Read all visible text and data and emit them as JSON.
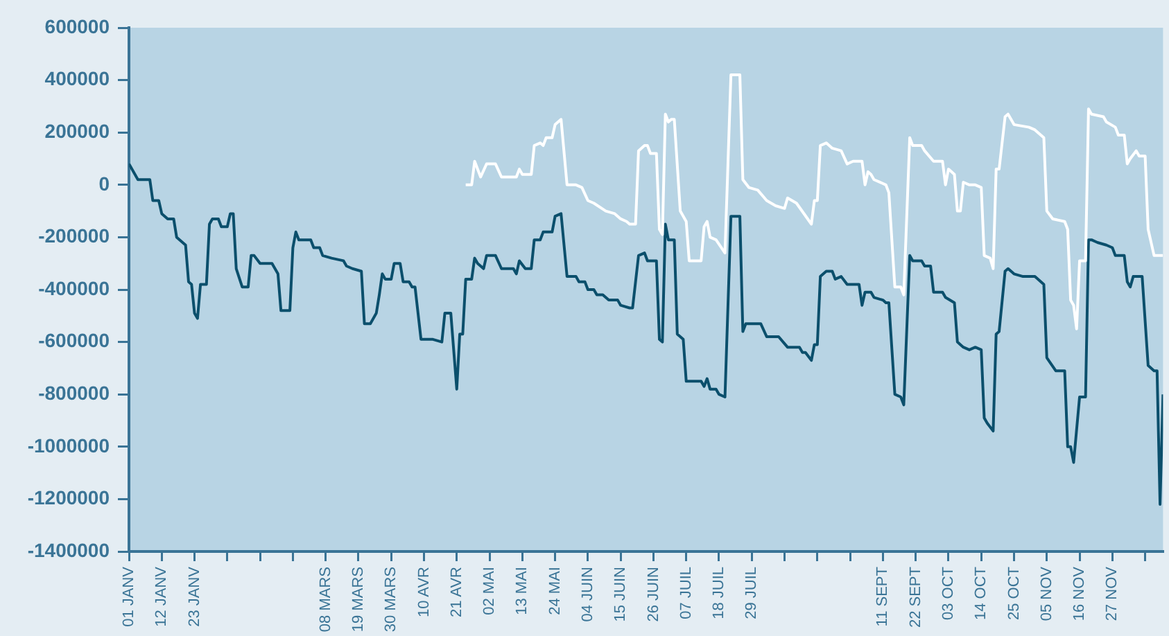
{
  "chart_data": {
    "type": "line",
    "xlim": [
      "--01-01",
      "--12-14"
    ],
    "xticks": [
      {
        "value": "--01-01",
        "label": "01 JANV"
      },
      {
        "value": "--01-12",
        "label": "12 JANV"
      },
      {
        "value": "--01-23",
        "label": "23 JANV"
      },
      {
        "value": "--02-03",
        "label": null
      },
      {
        "value": "--02-14",
        "label": null
      },
      {
        "value": "--02-25",
        "label": null
      },
      {
        "value": "--03-08",
        "label": "08 MARS"
      },
      {
        "value": "--03-19",
        "label": "19 MARS"
      },
      {
        "value": "--03-30",
        "label": "30 MARS"
      },
      {
        "value": "--04-10",
        "label": "10 AVR"
      },
      {
        "value": "--04-21",
        "label": "21 AVR"
      },
      {
        "value": "--05-02",
        "label": "02 MAI"
      },
      {
        "value": "--05-13",
        "label": "13 MAI"
      },
      {
        "value": "--05-24",
        "label": "24 MAI"
      },
      {
        "value": "--06-04",
        "label": "04 JUIN"
      },
      {
        "value": "--06-15",
        "label": "15 JUIN"
      },
      {
        "value": "--06-26",
        "label": "26 JUIN"
      },
      {
        "value": "--07-07",
        "label": "07 JUIL"
      },
      {
        "value": "--07-18",
        "label": "18 JUIL"
      },
      {
        "value": "--07-29",
        "label": "29 JUIL"
      },
      {
        "value": "--08-09",
        "label": null
      },
      {
        "value": "--08-20",
        "label": null
      },
      {
        "value": "--08-31",
        "label": null
      },
      {
        "value": "--09-11",
        "label": "11 SEPT"
      },
      {
        "value": "--09-22",
        "label": "22 SEPT"
      },
      {
        "value": "--10-03",
        "label": "03 OCT"
      },
      {
        "value": "--10-14",
        "label": "14 OCT"
      },
      {
        "value": "--10-25",
        "label": "25 OCT"
      },
      {
        "value": "--11-05",
        "label": "05 NOV"
      },
      {
        "value": "--11-16",
        "label": "16 NOV"
      },
      {
        "value": "--11-27",
        "label": "27 NOV"
      },
      {
        "value": "--12-08",
        "label": null
      }
    ],
    "ylim": [
      -1400000,
      600000
    ],
    "yticks": [
      -1400000,
      -1200000,
      -1000000,
      -800000,
      -600000,
      -400000,
      -200000,
      0,
      200000,
      400000,
      600000
    ],
    "grid": false,
    "series": [
      {
        "color": "#0b4f6c",
        "x": [
          "--01-01",
          "--01-04",
          "--01-08",
          "--01-09",
          "--01-11",
          "--01-12",
          "--01-14",
          "--01-16",
          "--01-17",
          "--01-19",
          "--01-20",
          "--01-21",
          "--01-22",
          "--01-23",
          "--01-24",
          "--01-25",
          "--01-27",
          "--01-28",
          "--01-29",
          "--01-31",
          "--02-01",
          "--02-03",
          "--02-04",
          "--02-05",
          "--02-06",
          "--02-08",
          "--02-10",
          "--02-11",
          "--02-12",
          "--02-14",
          "--02-18",
          "--02-20",
          "--02-21",
          "--02-24",
          "--02-25",
          "--02-26",
          "--02-27",
          "--03-03",
          "--03-04",
          "--03-06",
          "--03-07",
          "--03-10",
          "--03-14",
          "--03-15",
          "--03-17",
          "--03-20",
          "--03-21",
          "--03-23",
          "--03-25",
          "--03-26",
          "--03-27",
          "--03-28",
          "--03-30",
          "--03-31",
          "--04-02",
          "--04-03",
          "--04-05",
          "--04-06",
          "--04-07",
          "--04-09",
          "--04-13",
          "--04-16",
          "--04-17",
          "--04-19",
          "--04-21",
          "--04-22",
          "--04-23",
          "--04-24",
          "--04-26",
          "--04-27",
          "--04-28",
          "--04-30",
          "--05-01",
          "--05-04",
          "--05-06",
          "--05-10",
          "--05-11",
          "--05-12",
          "--05-14",
          "--05-16",
          "--05-17",
          "--05-19",
          "--05-20",
          "--05-23",
          "--05-24",
          "--05-26",
          "--05-28",
          "--05-31",
          "--06-01",
          "--06-03",
          "--06-04",
          "--06-06",
          "--06-07",
          "--06-09",
          "--06-11",
          "--06-14",
          "--06-15",
          "--06-18",
          "--06-19",
          "--06-21",
          "--06-23",
          "--06-24",
          "--06-27",
          "--06-28",
          "--06-29",
          "--06-30",
          "--07-01",
          "--07-03",
          "--07-04",
          "--07-06",
          "--07-07",
          "--07-12",
          "--07-13",
          "--07-14",
          "--07-15",
          "--07-17",
          "--07-18",
          "--07-20",
          "--07-22",
          "--07-25",
          "--07-26",
          "--07-27",
          "--08-01",
          "--08-03",
          "--08-07",
          "--08-10",
          "--08-14",
          "--08-15",
          "--08-16",
          "--08-18",
          "--08-19",
          "--08-20",
          "--08-21",
          "--08-23",
          "--08-25",
          "--08-26",
          "--08-28",
          "--08-30",
          "--09-03",
          "--09-04",
          "--09-05",
          "--09-07",
          "--09-08",
          "--09-11",
          "--09-12",
          "--09-13",
          "--09-15",
          "--09-17",
          "--09-18",
          "--09-20",
          "--09-21",
          "--09-24",
          "--09-25",
          "--09-27",
          "--09-28",
          "--10-01",
          "--10-02",
          "--10-05",
          "--10-06",
          "--10-07",
          "--10-08",
          "--10-10",
          "--10-12",
          "--10-14",
          "--10-15",
          "--10-16",
          "--10-18",
          "--10-19",
          "--10-20",
          "--10-22",
          "--10-23",
          "--10-25",
          "--10-28",
          "--11-01",
          "--11-04",
          "--11-05",
          "--11-08",
          "--11-11",
          "--11-12",
          "--11-13",
          "--11-14",
          "--11-16",
          "--11-18",
          "--11-19",
          "--11-20",
          "--11-22",
          "--11-25",
          "--11-27",
          "--11-28",
          "--12-01",
          "--12-02",
          "--12-03",
          "--12-04",
          "--12-05",
          "--12-07",
          "--12-09",
          "--12-11",
          "--12-12",
          "--12-13",
          "--12-14"
        ],
        "values": [
          80000,
          20000,
          20000,
          -60000,
          -60000,
          -110000,
          -130000,
          -130000,
          -200000,
          -220000,
          -230000,
          -370000,
          -380000,
          -490000,
          -510000,
          -380000,
          -380000,
          -150000,
          -130000,
          -130000,
          -160000,
          -160000,
          -110000,
          -110000,
          -320000,
          -390000,
          -390000,
          -270000,
          -270000,
          -300000,
          -300000,
          -340000,
          -480000,
          -480000,
          -240000,
          -180000,
          -210000,
          -210000,
          -240000,
          -240000,
          -270000,
          -280000,
          -290000,
          -310000,
          -320000,
          -330000,
          -530000,
          -530000,
          -490000,
          -420000,
          -340000,
          -360000,
          -360000,
          -300000,
          -300000,
          -370000,
          -370000,
          -390000,
          -390000,
          -590000,
          -590000,
          -600000,
          -490000,
          -490000,
          -780000,
          -570000,
          -570000,
          -360000,
          -360000,
          -280000,
          -300000,
          -320000,
          -270000,
          -270000,
          -320000,
          -320000,
          -340000,
          -290000,
          -320000,
          -320000,
          -210000,
          -210000,
          -180000,
          -180000,
          -120000,
          -110000,
          -350000,
          -350000,
          -370000,
          -370000,
          -400000,
          -400000,
          -420000,
          -420000,
          -440000,
          -440000,
          -460000,
          -470000,
          -470000,
          -270000,
          -260000,
          -290000,
          -290000,
          -590000,
          -600000,
          -150000,
          -210000,
          -210000,
          -570000,
          -590000,
          -750000,
          -750000,
          -770000,
          -740000,
          -780000,
          -780000,
          -800000,
          -810000,
          -120000,
          -120000,
          -560000,
          -530000,
          -530000,
          -580000,
          -580000,
          -620000,
          -620000,
          -640000,
          -640000,
          -670000,
          -610000,
          -610000,
          -350000,
          -330000,
          -330000,
          -360000,
          -350000,
          -380000,
          -380000,
          -460000,
          -410000,
          -410000,
          -430000,
          -440000,
          -450000,
          -450000,
          -800000,
          -810000,
          -840000,
          -270000,
          -290000,
          -290000,
          -310000,
          -310000,
          -410000,
          -410000,
          -430000,
          -450000,
          -600000,
          -610000,
          -620000,
          -630000,
          -620000,
          -630000,
          -890000,
          -910000,
          -940000,
          -570000,
          -560000,
          -330000,
          -320000,
          -340000,
          -350000,
          -350000,
          -380000,
          -660000,
          -710000,
          -710000,
          -1000000,
          -1000000,
          -1060000,
          -810000,
          -810000,
          -210000,
          -210000,
          -220000,
          -230000,
          -240000,
          -270000,
          -270000,
          -370000,
          -390000,
          -350000,
          -350000,
          -350000,
          -690000,
          -710000,
          -710000,
          -1220000,
          -800000
        ]
      },
      {
        "color": "#ffffff",
        "x": [
          "--04-24",
          "--04-26",
          "--04-27",
          "--04-29",
          "--05-01",
          "--05-04",
          "--05-06",
          "--05-11",
          "--05-12",
          "--05-13",
          "--05-16",
          "--05-17",
          "--05-19",
          "--05-20",
          "--05-21",
          "--05-23",
          "--05-24",
          "--05-26",
          "--05-28",
          "--05-31",
          "--06-02",
          "--06-04",
          "--06-06",
          "--06-10",
          "--06-13",
          "--06-15",
          "--06-17",
          "--06-18",
          "--06-20",
          "--06-21",
          "--06-23",
          "--06-24",
          "--06-25",
          "--06-27",
          "--06-28",
          "--06-29",
          "--06-30",
          "--07-01",
          "--07-02",
          "--07-03",
          "--07-05",
          "--07-07",
          "--07-08",
          "--07-12",
          "--07-13",
          "--07-14",
          "--07-15",
          "--07-17",
          "--07-20",
          "--07-22",
          "--07-25",
          "--07-26",
          "--07-28",
          "--07-31",
          "--08-03",
          "--08-06",
          "--08-09",
          "--08-10",
          "--08-13",
          "--08-18",
          "--08-19",
          "--08-20",
          "--08-21",
          "--08-23",
          "--08-25",
          "--08-28",
          "--08-30",
          "--09-01",
          "--09-04",
          "--09-05",
          "--09-06",
          "--09-07",
          "--09-08",
          "--09-12",
          "--09-13",
          "--09-15",
          "--09-17",
          "--09-18",
          "--09-20",
          "--09-21",
          "--09-24",
          "--09-25",
          "--09-28",
          "--10-01",
          "--10-02",
          "--10-03",
          "--10-05",
          "--10-06",
          "--10-07",
          "--10-08",
          "--10-10",
          "--10-12",
          "--10-14",
          "--10-15",
          "--10-17",
          "--10-18",
          "--10-19",
          "--10-20",
          "--10-22",
          "--10-23",
          "--10-25",
          "--10-30",
          "--11-01",
          "--11-04",
          "--11-05",
          "--11-07",
          "--11-11",
          "--11-12",
          "--11-13",
          "--11-14",
          "--11-15",
          "--11-16",
          "--11-18",
          "--11-19",
          "--11-20",
          "--11-24",
          "--11-25",
          "--11-28",
          "--11-29",
          "--12-01",
          "--12-02",
          "--12-03",
          "--12-05",
          "--12-06",
          "--12-08",
          "--12-09",
          "--12-11",
          "--12-14"
        ],
        "values": [
          0,
          0,
          90000,
          30000,
          80000,
          80000,
          30000,
          30000,
          60000,
          40000,
          40000,
          150000,
          160000,
          150000,
          180000,
          180000,
          230000,
          250000,
          0,
          0,
          -10000,
          -60000,
          -70000,
          -100000,
          -110000,
          -130000,
          -140000,
          -150000,
          -150000,
          130000,
          150000,
          150000,
          120000,
          120000,
          -170000,
          -190000,
          270000,
          240000,
          250000,
          250000,
          -100000,
          -140000,
          -290000,
          -290000,
          -160000,
          -140000,
          -200000,
          -210000,
          -260000,
          420000,
          420000,
          20000,
          -10000,
          -20000,
          -60000,
          -80000,
          -90000,
          -50000,
          -70000,
          -150000,
          -60000,
          -60000,
          150000,
          160000,
          140000,
          130000,
          80000,
          90000,
          90000,
          0,
          50000,
          40000,
          20000,
          0,
          -30000,
          -390000,
          -390000,
          -420000,
          180000,
          150000,
          150000,
          130000,
          90000,
          90000,
          0,
          60000,
          40000,
          -100000,
          -100000,
          10000,
          0,
          0,
          -10000,
          -270000,
          -280000,
          -320000,
          60000,
          60000,
          260000,
          270000,
          230000,
          220000,
          210000,
          180000,
          -100000,
          -130000,
          -140000,
          -170000,
          -440000,
          -460000,
          -550000,
          -290000,
          -290000,
          290000,
          270000,
          260000,
          240000,
          220000,
          190000,
          190000,
          80000,
          100000,
          130000,
          110000,
          110000,
          -170000,
          -270000,
          -270000
        ]
      }
    ]
  }
}
